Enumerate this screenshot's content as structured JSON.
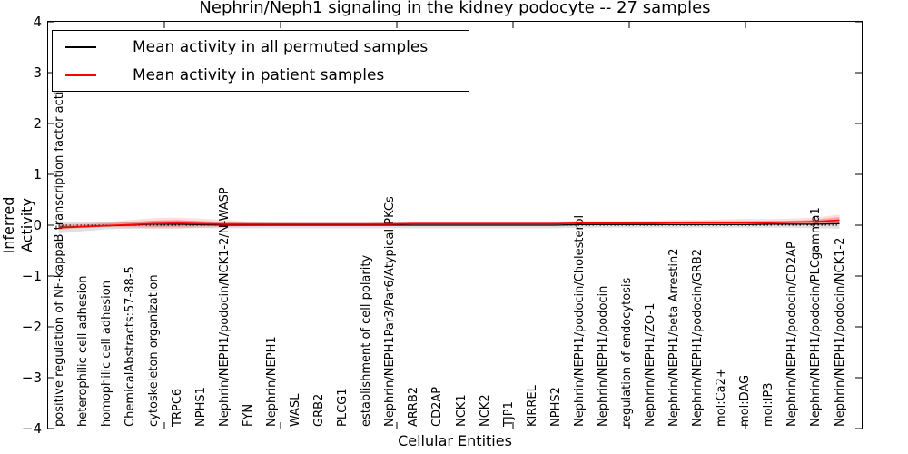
{
  "title": "Nephrin/Neph1 signaling in the kidney podocyte -- 27 samples",
  "axes": {
    "ylabel": "Inferred Activity",
    "xlabel": "Cellular Entities"
  },
  "legend": {
    "position": "upper left",
    "entries": [
      {
        "label": "Mean activity in all permuted samples",
        "color": "#000000"
      },
      {
        "label": "Mean activity in patient samples",
        "color": "#ff0000"
      }
    ]
  },
  "chart_data": {
    "type": "line",
    "title": "Nephrin/Neph1 signaling in the kidney podocyte -- 27 samples",
    "xlabel": "Cellular Entities",
    "ylabel": "Inferred Activity",
    "ylim": [
      -4,
      4
    ],
    "xlim": [
      0,
      35
    ],
    "grid": false,
    "zero_line_style": "dotted",
    "yticks": [
      {
        "value": 4,
        "label": "4"
      },
      {
        "value": 3,
        "label": "3"
      },
      {
        "value": 2,
        "label": "2"
      },
      {
        "value": 1,
        "label": "1"
      },
      {
        "value": 0,
        "label": "0"
      },
      {
        "value": -1,
        "label": "−1"
      },
      {
        "value": -2,
        "label": "−2"
      },
      {
        "value": -3,
        "label": "−3"
      },
      {
        "value": -4,
        "label": "−4"
      }
    ],
    "x_major_ticks": [
      5,
      10,
      15,
      20,
      25,
      30
    ],
    "categories": [
      "positive regulation of NF-kappaB transcription factor activity",
      "heterophilic cell adhesion",
      "homophilic cell adhesion",
      "ChemicalAbstracts:57-88-5",
      "cytoskeleton organization",
      "TRPC6",
      "NPHS1",
      "Nephrin/NEPH1/podocin/NCK1-2/N-WASP",
      "FYN",
      "Nephrin/NEPH1",
      "WASL",
      "GRB2",
      "PLCG1",
      "establishment of cell polarity",
      "Nephrin/NEPH1Par3/Par6/Atypical PKCs",
      "ARRB2",
      "CD2AP",
      "NCK1",
      "NCK2",
      "TJP1",
      "KIRREL",
      "NPHS2",
      "Nephrin/NEPH1/podocin/Cholesterol",
      "Nephrin/NEPH1/podocin",
      "regulation of endocytosis",
      "Nephrin/NEPH1/ZO-1",
      "Nephrin/NEPH1/beta Arrestin2",
      "Nephrin/NEPH1/podocin/GRB2",
      "mol:Ca2+",
      "mol:DAG",
      "mol:IP3",
      "Nephrin/NEPH1/podocin/CD2AP",
      "Nephrin/NEPH1/podocin/PLCgamma1",
      "Nephrin/NEPH1/podocin/NCK1-2"
    ],
    "series": [
      {
        "name": "Mean activity in all permuted samples",
        "color": "#000000",
        "values": [
          -0.04,
          -0.03,
          -0.01,
          0,
          0.02,
          0.02,
          0.01,
          0,
          0,
          0,
          0,
          0,
          0,
          0,
          0,
          0,
          0,
          0,
          0,
          0,
          0,
          0,
          0.01,
          0.01,
          0.01,
          0.01,
          0.01,
          0.01,
          0.01,
          0.01,
          0.02,
          0.02,
          0.02,
          0.03
        ]
      },
      {
        "name": "Mean activity in patient samples",
        "color": "#ff0000",
        "values": [
          -0.05,
          -0.03,
          -0.01,
          0.01,
          0.03,
          0.04,
          0.03,
          0.02,
          0.02,
          0.02,
          0.02,
          0.02,
          0.02,
          0.02,
          0.02,
          0.03,
          0.03,
          0.03,
          0.03,
          0.03,
          0.03,
          0.03,
          0.04,
          0.04,
          0.04,
          0.04,
          0.05,
          0.05,
          0.05,
          0.05,
          0.05,
          0.06,
          0.07,
          0.1
        ]
      }
    ],
    "bands": [
      {
        "name": "permuted-samples-spread",
        "color": "#000000",
        "opacity": 0.12,
        "lo": [
          -0.16,
          -0.12,
          -0.08,
          -0.07,
          -0.06,
          -0.06,
          -0.06,
          -0.06,
          -0.06,
          -0.06,
          -0.06,
          -0.06,
          -0.06,
          -0.06,
          -0.06,
          -0.06,
          -0.06,
          -0.06,
          -0.06,
          -0.06,
          -0.06,
          -0.06,
          -0.05,
          -0.05,
          -0.05,
          -0.05,
          -0.05,
          -0.05,
          -0.05,
          -0.05,
          -0.05,
          -0.05,
          -0.06,
          -0.07
        ],
        "hi": [
          0.08,
          0.06,
          0.06,
          0.07,
          0.09,
          0.1,
          0.08,
          0.07,
          0.06,
          0.06,
          0.06,
          0.06,
          0.06,
          0.06,
          0.06,
          0.06,
          0.06,
          0.06,
          0.06,
          0.06,
          0.06,
          0.06,
          0.07,
          0.07,
          0.07,
          0.07,
          0.07,
          0.07,
          0.07,
          0.08,
          0.08,
          0.08,
          0.09,
          0.1
        ]
      },
      {
        "name": "patient-samples-spread-outer",
        "color": "#ff0000",
        "opacity": 0.13,
        "lo": [
          -0.09,
          -0.06,
          -0.04,
          -0.05,
          -0.07,
          -0.07,
          -0.05,
          -0.04,
          -0.02,
          -0.01,
          -0.01,
          -0.01,
          -0.01,
          -0.01,
          -0.01,
          -0.01,
          -0.01,
          -0.01,
          -0.01,
          -0.01,
          -0.01,
          -0.01,
          0,
          0,
          0,
          0,
          0,
          0,
          0,
          0,
          0,
          0,
          0,
          0.01
        ],
        "hi": [
          0.02,
          0.03,
          0.06,
          0.1,
          0.14,
          0.15,
          0.13,
          0.1,
          0.07,
          0.06,
          0.05,
          0.05,
          0.05,
          0.05,
          0.06,
          0.06,
          0.06,
          0.06,
          0.06,
          0.06,
          0.06,
          0.07,
          0.08,
          0.08,
          0.08,
          0.09,
          0.1,
          0.1,
          0.11,
          0.12,
          0.12,
          0.13,
          0.15,
          0.21
        ]
      },
      {
        "name": "patient-samples-spread-inner",
        "color": "#ff0000",
        "opacity": 0.25,
        "lo": [
          -0.07,
          -0.05,
          -0.03,
          -0.02,
          -0.03,
          -0.03,
          -0.02,
          -0.01,
          0,
          0,
          0,
          0,
          0,
          0,
          0,
          0.01,
          0.01,
          0.01,
          0.01,
          0.01,
          0.01,
          0.01,
          0.02,
          0.02,
          0.02,
          0.02,
          0.02,
          0.02,
          0.02,
          0.02,
          0.02,
          0.03,
          0.03,
          0.04
        ],
        "hi": [
          0,
          0.01,
          0.03,
          0.06,
          0.09,
          0.1,
          0.08,
          0.06,
          0.05,
          0.04,
          0.04,
          0.04,
          0.04,
          0.04,
          0.05,
          0.05,
          0.05,
          0.05,
          0.05,
          0.05,
          0.05,
          0.05,
          0.06,
          0.06,
          0.06,
          0.07,
          0.07,
          0.08,
          0.08,
          0.08,
          0.09,
          0.09,
          0.11,
          0.16
        ]
      }
    ]
  }
}
